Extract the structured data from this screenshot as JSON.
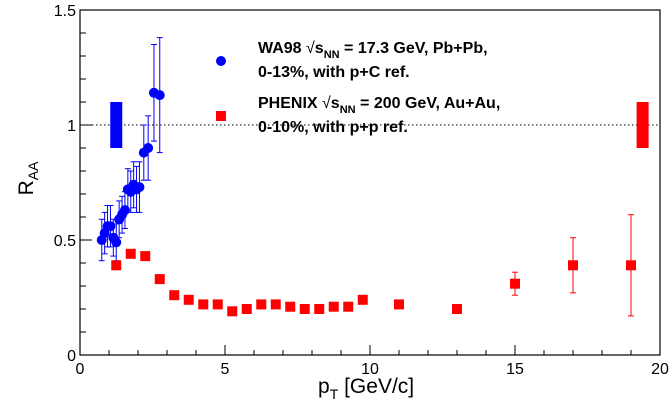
{
  "chart_data": {
    "type": "scatter",
    "xlabel": "p",
    "xlabel_sub": "T",
    "xlabel_unit": "[GeV/c]",
    "ylabel": "R",
    "ylabel_sub": "AA",
    "xlim": [
      0,
      20
    ],
    "ylim": [
      0,
      1.5
    ],
    "x_ticks": [
      0,
      5,
      10,
      15,
      20
    ],
    "y_ticks": [
      0,
      0.5,
      1,
      1.5
    ],
    "x_tick_labels": [
      "0",
      "5",
      "10",
      "15",
      "20"
    ],
    "y_tick_labels": [
      "0",
      "0.5",
      "1",
      "1.5"
    ],
    "grid": false,
    "reference_line": {
      "y": 1,
      "style": "dotted"
    },
    "legend_position": "top-right",
    "series": [
      {
        "name": "WA98",
        "legend_lines": [
          "WA98 √s_NN = 17.3 GeV, Pb+Pb,",
          "0-13%, with p+C ref."
        ],
        "legend_parts": {
          "pre": "WA98 ",
          "sqrt": "s",
          "sub": "NN",
          "post": " = 17.3 GeV, Pb+Pb,",
          "line2": "0-13%, with p+C ref."
        },
        "marker": "circle",
        "color": "#0000ff",
        "points": [
          {
            "x": 0.75,
            "y": 0.5,
            "err": 0.09
          },
          {
            "x": 0.85,
            "y": 0.53,
            "err": 0.09
          },
          {
            "x": 0.95,
            "y": 0.56,
            "err": 0.09
          },
          {
            "x": 1.05,
            "y": 0.56,
            "err": 0.09
          },
          {
            "x": 1.15,
            "y": 0.51,
            "err": 0.08
          },
          {
            "x": 1.25,
            "y": 0.49,
            "err": 0.08
          },
          {
            "x": 1.35,
            "y": 0.59,
            "err": 0.08
          },
          {
            "x": 1.45,
            "y": 0.61,
            "err": 0.08
          },
          {
            "x": 1.55,
            "y": 0.63,
            "err": 0.08
          },
          {
            "x": 1.65,
            "y": 0.72,
            "err": 0.09
          },
          {
            "x": 1.75,
            "y": 0.71,
            "err": 0.09
          },
          {
            "x": 1.85,
            "y": 0.74,
            "err": 0.1
          },
          {
            "x": 1.95,
            "y": 0.72,
            "err": 0.1
          },
          {
            "x": 2.05,
            "y": 0.73,
            "err": 0.11
          },
          {
            "x": 2.2,
            "y": 0.88,
            "err": 0.12
          },
          {
            "x": 2.35,
            "y": 0.9,
            "err": 0.14
          },
          {
            "x": 2.55,
            "y": 1.14,
            "err": 0.21
          },
          {
            "x": 2.75,
            "y": 1.13,
            "err": 0.25
          }
        ]
      },
      {
        "name": "PHENIX",
        "legend_lines": [
          "PHENIX √s_NN = 200 GeV, Au+Au,",
          "0-10%, with p+p ref."
        ],
        "legend_parts": {
          "pre": "PHENIX ",
          "sqrt": "s",
          "sub": "NN",
          "post": " = 200 GeV, Au+Au,",
          "line2": "0-10%, with p+p ref."
        },
        "marker": "square",
        "color": "#ff0000",
        "points": [
          {
            "x": 1.25,
            "y": 0.39,
            "err": 0.0
          },
          {
            "x": 1.75,
            "y": 0.44,
            "err": 0.0
          },
          {
            "x": 2.25,
            "y": 0.43,
            "err": 0.0
          },
          {
            "x": 2.75,
            "y": 0.33,
            "err": 0.0
          },
          {
            "x": 3.25,
            "y": 0.26,
            "err": 0.0
          },
          {
            "x": 3.75,
            "y": 0.24,
            "err": 0.0
          },
          {
            "x": 4.25,
            "y": 0.22,
            "err": 0.0
          },
          {
            "x": 4.75,
            "y": 0.22,
            "err": 0.0
          },
          {
            "x": 5.25,
            "y": 0.19,
            "err": 0.0
          },
          {
            "x": 5.75,
            "y": 0.2,
            "err": 0.0
          },
          {
            "x": 6.25,
            "y": 0.22,
            "err": 0.0
          },
          {
            "x": 6.75,
            "y": 0.22,
            "err": 0.0
          },
          {
            "x": 7.25,
            "y": 0.21,
            "err": 0.0
          },
          {
            "x": 7.75,
            "y": 0.2,
            "err": 0.0
          },
          {
            "x": 8.25,
            "y": 0.2,
            "err": 0.0
          },
          {
            "x": 8.75,
            "y": 0.21,
            "err": 0.0
          },
          {
            "x": 9.25,
            "y": 0.21,
            "err": 0.0
          },
          {
            "x": 9.75,
            "y": 0.24,
            "err": 0.0
          },
          {
            "x": 11.0,
            "y": 0.22,
            "err": 0.0
          },
          {
            "x": 13.0,
            "y": 0.2,
            "err": 0.0
          },
          {
            "x": 15.0,
            "y": 0.31,
            "err": 0.05
          },
          {
            "x": 17.0,
            "y": 0.39,
            "err": 0.12
          },
          {
            "x": 19.0,
            "y": 0.39,
            "err": 0.22
          }
        ]
      }
    ],
    "normalization_boxes": [
      {
        "series": "WA98",
        "x": 1.25,
        "y_low": 0.9,
        "y_high": 1.1,
        "color": "#0000ff"
      },
      {
        "series": "PHENIX",
        "x": 19.4,
        "y_low": 0.9,
        "y_high": 1.1,
        "color": "#ff0000"
      }
    ]
  }
}
